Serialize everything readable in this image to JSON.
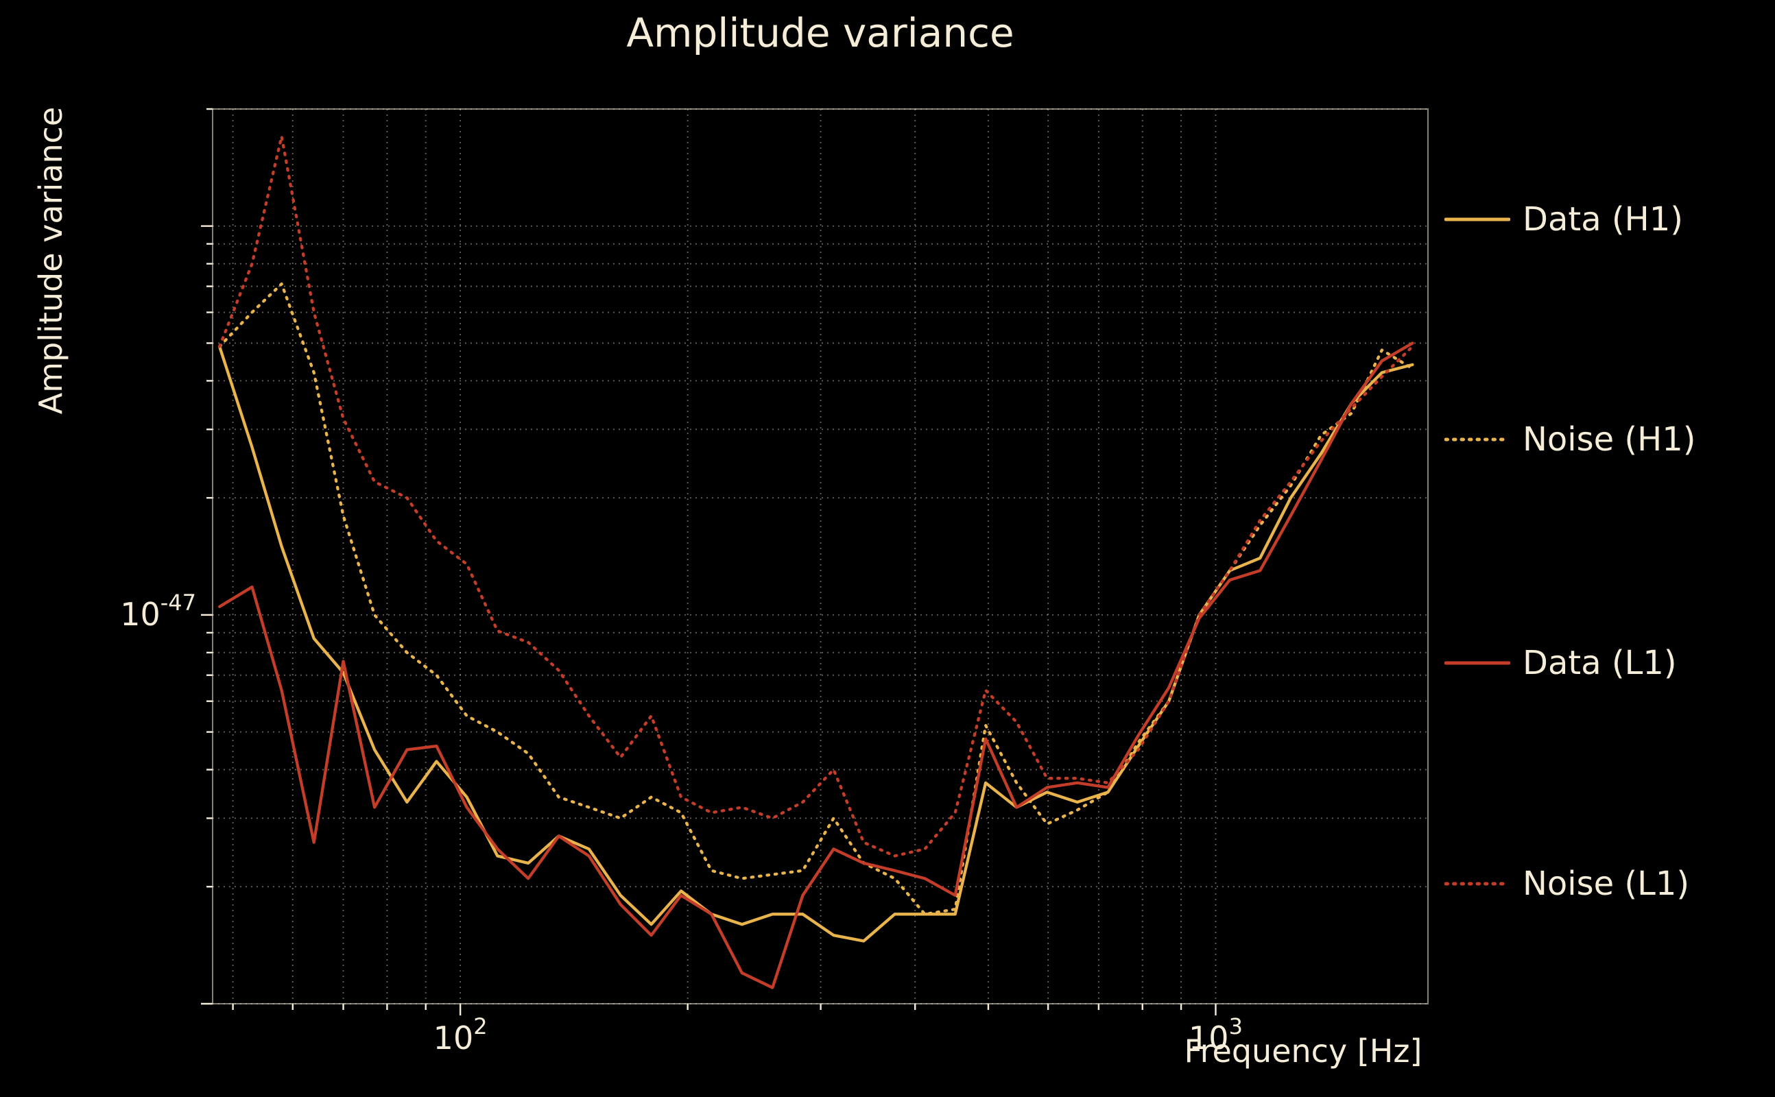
{
  "page": {
    "background": "#000000",
    "text_color": "#F6EDD8"
  },
  "chart_data": {
    "type": "line",
    "title": "Amplitude variance",
    "xlabel": "Frequency [Hz]",
    "ylabel": "Amplitude variance",
    "xscale": "log",
    "yscale": "log",
    "grid": true,
    "grid_color": "#F3E9D4",
    "legend_position": "right-outside",
    "xlim": [
      47,
      1910
    ],
    "ylim": [
      1e-48,
      2e-46
    ],
    "x_ticks": [
      {
        "value": 100,
        "base": "10",
        "exp": "2"
      },
      {
        "value": 1000,
        "base": "10",
        "exp": "3"
      }
    ],
    "y_ticks": [
      {
        "value": 1e-47,
        "base": "10",
        "exp": "-47"
      }
    ],
    "frequencies_hz": [
      48,
      53,
      58,
      64,
      70,
      77,
      85,
      93,
      102,
      112,
      123,
      135,
      148,
      163,
      179,
      196,
      215,
      236,
      259,
      284,
      312,
      342,
      376,
      412,
      452,
      496,
      545,
      598,
      656,
      720,
      790,
      867,
      951,
      1044,
      1145,
      1257,
      1379,
      1513,
      1660,
      1822
    ],
    "series": [
      {
        "name": "Data (H1)",
        "color": "#E9B44C",
        "style": "solid",
        "values": [
          4.9e-47,
          2.7e-47,
          1.5e-47,
          8.7e-48,
          7.1e-48,
          4.5e-48,
          3.3e-48,
          4.2e-48,
          3.4e-48,
          2.4e-48,
          2.3e-48,
          2.7e-48,
          2.5e-48,
          1.9e-48,
          1.6e-48,
          1.95e-48,
          1.7e-48,
          1.6e-48,
          1.7e-48,
          1.7e-48,
          1.5e-48,
          1.45e-48,
          1.7e-48,
          1.7e-48,
          1.7e-48,
          3.7e-48,
          3.2e-48,
          3.5e-48,
          3.3e-48,
          3.5e-48,
          4.6e-48,
          6e-48,
          1e-47,
          1.3e-47,
          1.4e-47,
          2e-47,
          2.6e-47,
          3.5e-47,
          4.2e-47,
          4.4e-47
        ]
      },
      {
        "name": "Noise (H1)",
        "color": "#E9B44C",
        "style": "dotted",
        "values": [
          4.9e-47,
          6e-47,
          7.1e-47,
          4.2e-47,
          1.8e-47,
          1e-47,
          8e-48,
          7e-48,
          5.5e-48,
          5e-48,
          4.4e-48,
          3.4e-48,
          3.2e-48,
          3e-48,
          3.4e-48,
          3.1e-48,
          2.2e-48,
          2.1e-48,
          2.15e-48,
          2.2e-48,
          3e-48,
          2.3e-48,
          2.1e-48,
          1.7e-48,
          1.75e-48,
          5.2e-48,
          3.7e-48,
          2.9e-48,
          3.15e-48,
          3.5e-48,
          4.7e-48,
          6e-48,
          1e-47,
          1.3e-47,
          1.7e-47,
          2.15e-47,
          2.9e-47,
          3.3e-47,
          4.8e-47,
          4.3e-47
        ]
      },
      {
        "name": "Data (L1)",
        "color": "#C43D28",
        "style": "solid",
        "values": [
          1.05e-47,
          1.18e-47,
          6.4e-48,
          2.6e-48,
          7.6e-48,
          3.2e-48,
          4.5e-48,
          4.6e-48,
          3.2e-48,
          2.5e-48,
          2.1e-48,
          2.7e-48,
          2.4e-48,
          1.8e-48,
          1.5e-48,
          1.9e-48,
          1.7e-48,
          1.2e-48,
          1.1e-48,
          1.9e-48,
          2.5e-48,
          2.3e-48,
          2.2e-48,
          2.1e-48,
          1.9e-48,
          4.8e-48,
          3.2e-48,
          3.6e-48,
          3.7e-48,
          3.6e-48,
          4.9e-48,
          6.5e-48,
          9.8e-48,
          1.23e-47,
          1.3e-47,
          1.8e-47,
          2.5e-47,
          3.5e-47,
          4.5e-47,
          5e-47
        ]
      },
      {
        "name": "Noise (L1)",
        "color": "#C43D28",
        "style": "dotted",
        "values": [
          4.9e-47,
          8e-47,
          1.7e-46,
          6e-47,
          3.2e-47,
          2.2e-47,
          2e-47,
          1.55e-47,
          1.35e-47,
          9.1e-48,
          8.5e-48,
          7.2e-48,
          5.5e-48,
          4.3e-48,
          5.5e-48,
          3.4e-48,
          3.1e-48,
          3.2e-48,
          3e-48,
          3.3e-48,
          4e-48,
          2.6e-48,
          2.4e-48,
          2.5e-48,
          3.1e-48,
          6.4e-48,
          5.3e-48,
          3.8e-48,
          3.8e-48,
          3.7e-48,
          4.5e-48,
          6e-48,
          1e-47,
          1.3e-47,
          1.75e-47,
          2.2e-47,
          2.8e-47,
          3.4e-47,
          4.1e-47,
          4.9e-47
        ]
      }
    ]
  }
}
